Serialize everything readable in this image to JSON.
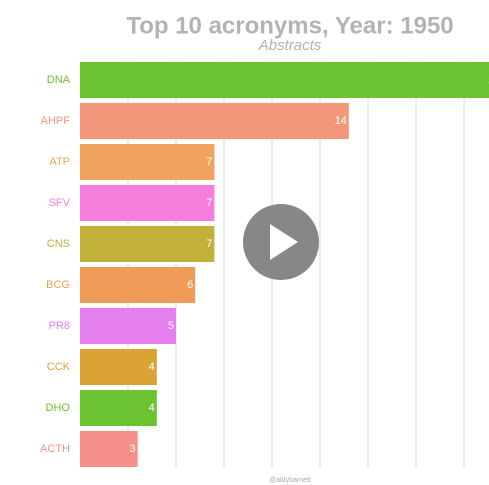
{
  "chart_data": {
    "type": "bar",
    "orientation": "horizontal",
    "title": "Top 10 acronyms, Year: 1950",
    "subtitle": "Abstracts",
    "credit": "@aldybarnett",
    "categories": [
      "DNA",
      "AHPF",
      "ATP",
      "SFV",
      "CNS",
      "BCG",
      "PR8",
      "CCK",
      "DHO",
      "ACTH"
    ],
    "values": [
      22,
      14,
      7,
      7,
      7,
      6,
      5,
      4,
      4,
      3
    ],
    "colors": [
      "#6cc332",
      "#f3977a",
      "#f0a35e",
      "#f77ddc",
      "#c1b13a",
      "#ef9c58",
      "#e57ff0",
      "#daa334",
      "#6cc332",
      "#f58f8a"
    ],
    "xlim": [
      0,
      21.3
    ],
    "xticks": [
      2.5,
      5,
      7.5,
      10,
      12.5,
      15,
      17.5,
      20
    ],
    "grid": true
  }
}
